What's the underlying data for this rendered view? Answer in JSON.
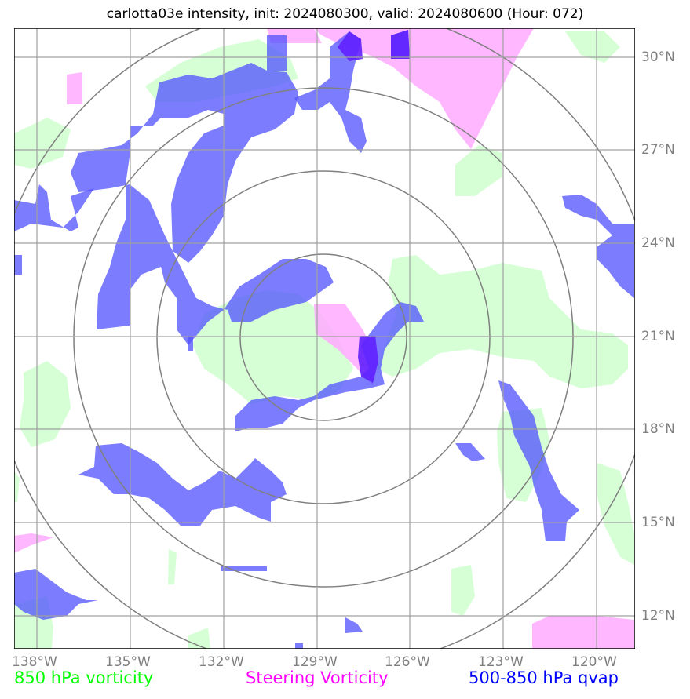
{
  "title": "carlotta03e intensity, init: 2024080300, valid: 2024080600 (Hour: 072)",
  "legend": [
    {
      "label": "850 hPa vorticity",
      "color": "#00ff00"
    },
    {
      "label": "Steering Vorticity",
      "color": "#ff00ff"
    },
    {
      "label": "500-850 hPa qvap",
      "color": "#0000ff"
    }
  ],
  "axes": {
    "lat_labels": [
      "30°N",
      "27°N",
      "24°N",
      "21°N",
      "18°N",
      "15°N",
      "12°N"
    ],
    "lon_labels": [
      "138°W",
      "135°W",
      "132°W",
      "129°W",
      "126°W",
      "123°W",
      "120°W"
    ]
  },
  "colors": {
    "vort850": "#ccffcc",
    "steering": "#ffaaff",
    "qvap": "#5050ff",
    "overlap": "#6000ff",
    "grid": "#a0a0a0",
    "rings": "#808080"
  }
}
